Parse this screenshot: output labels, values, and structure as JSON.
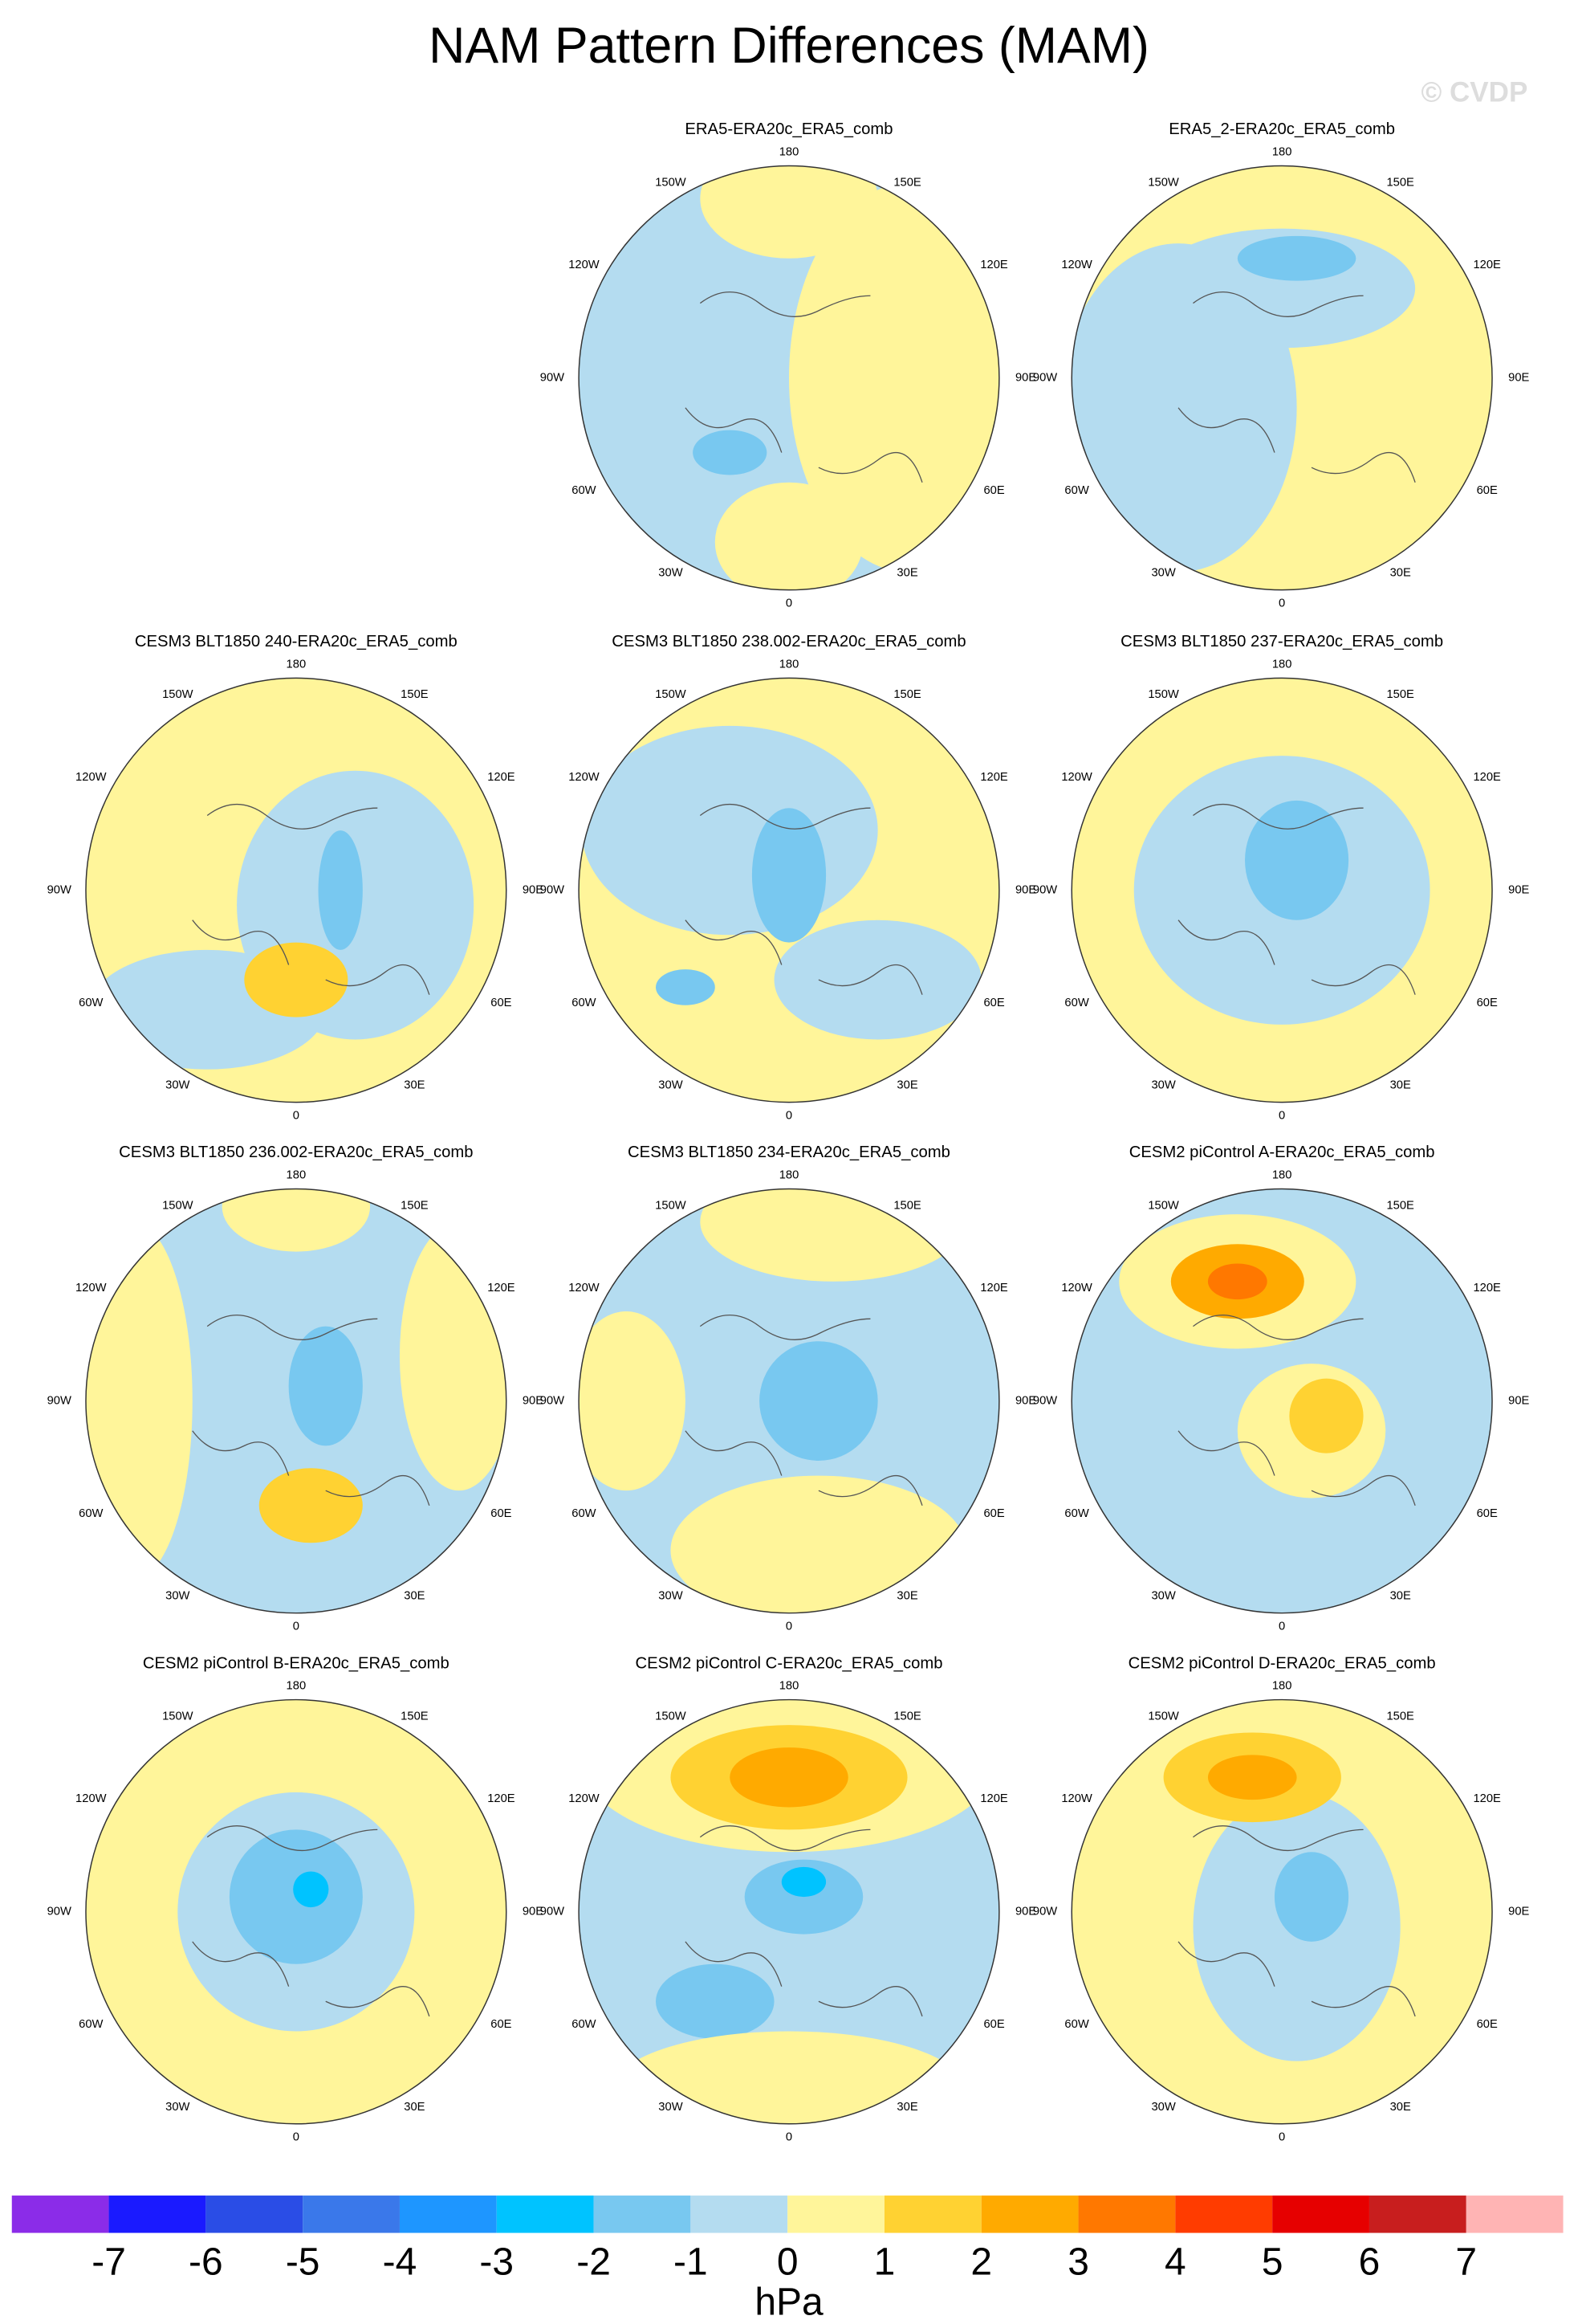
{
  "title": "NAM Pattern Differences (MAM)",
  "watermark": "© CVDP",
  "panels": [
    {
      "title": "ERA5-ERA20c_ERA5_comb"
    },
    {
      "title": "ERA5_2-ERA20c_ERA5_comb"
    },
    {
      "title": "CESM3 BLT1850 240-ERA20c_ERA5_comb"
    },
    {
      "title": "CESM3 BLT1850 238.002-ERA20c_ERA5_comb"
    },
    {
      "title": "CESM3 BLT1850 237-ERA20c_ERA5_comb"
    },
    {
      "title": "CESM3 BLT1850 236.002-ERA20c_ERA5_comb"
    },
    {
      "title": "CESM3 BLT1850 234-ERA20c_ERA5_comb"
    },
    {
      "title": "CESM2 piControl A-ERA20c_ERA5_comb"
    },
    {
      "title": "CESM2 piControl B-ERA20c_ERA5_comb"
    },
    {
      "title": "CESM2 piControl C-ERA20c_ERA5_comb"
    },
    {
      "title": "CESM2 piControl D-ERA20c_ERA5_comb"
    }
  ],
  "longitude_labels": [
    "180",
    "150E",
    "120E",
    "90E",
    "60E",
    "30E",
    "0",
    "30W",
    "60W",
    "90W",
    "120W",
    "150W"
  ],
  "colorbar": {
    "levels": [
      -7,
      -6,
      -5,
      -4,
      -3,
      -2,
      -1,
      0,
      1,
      2,
      3,
      4,
      5,
      6,
      7
    ],
    "colors": [
      "#8b2ce8",
      "#1a1aff",
      "#2a4de6",
      "#3a78ea",
      "#1e96ff",
      "#00c3ff",
      "#78c8f0",
      "#b4dcf0",
      "#fff59a",
      "#ffd232",
      "#ffaa00",
      "#ff7800",
      "#ff3c00",
      "#e60000",
      "#c81e1e",
      "#ffb4b4"
    ],
    "unit": "hPa"
  }
}
